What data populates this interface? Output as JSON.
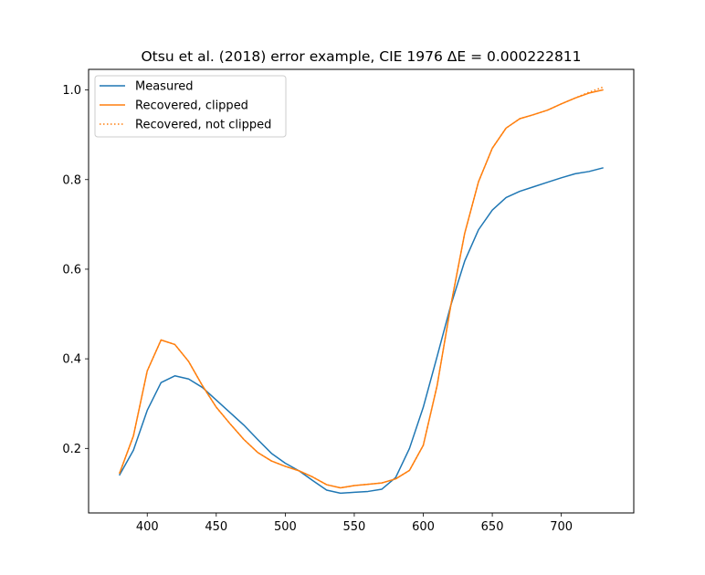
{
  "chart_data": {
    "type": "line",
    "title": "Otsu et al. (2018) error example, CIE 1976 ΔE = 0.000222811",
    "xlabel": "",
    "ylabel": "",
    "xlim": [
      357.5,
      752.5
    ],
    "ylim": [
      0.056,
      1.046
    ],
    "xticks": [
      400,
      450,
      500,
      550,
      600,
      650,
      700
    ],
    "yticks": [
      0.2,
      0.4,
      0.6,
      0.8,
      1.0
    ],
    "xtick_labels": [
      "400",
      "450",
      "500",
      "550",
      "600",
      "650",
      "700"
    ],
    "ytick_labels": [
      "0.2",
      "0.4",
      "0.6",
      "0.8",
      "1.0"
    ],
    "grid": false,
    "legend_position": "top-left",
    "x": [
      380,
      390,
      400,
      410,
      420,
      430,
      440,
      450,
      460,
      470,
      480,
      490,
      500,
      510,
      520,
      530,
      540,
      550,
      560,
      570,
      580,
      590,
      600,
      610,
      620,
      630,
      640,
      650,
      660,
      670,
      680,
      690,
      700,
      710,
      720,
      730
    ],
    "series": [
      {
        "name": "Measured",
        "color": "#1f77b4",
        "style": "solid",
        "values": [
          0.141,
          0.196,
          0.285,
          0.347,
          0.362,
          0.355,
          0.336,
          0.308,
          0.28,
          0.252,
          0.22,
          0.189,
          0.167,
          0.15,
          0.128,
          0.107,
          0.1,
          0.102,
          0.104,
          0.109,
          0.135,
          0.2,
          0.292,
          0.405,
          0.52,
          0.618,
          0.688,
          0.732,
          0.76,
          0.774,
          0.784,
          0.794,
          0.804,
          0.813,
          0.818,
          0.826
        ]
      },
      {
        "name": "Recovered, clipped",
        "color": "#ff7f0e",
        "style": "solid",
        "values": [
          0.145,
          0.228,
          0.373,
          0.442,
          0.432,
          0.394,
          0.34,
          0.292,
          0.255,
          0.22,
          0.191,
          0.172,
          0.16,
          0.15,
          0.136,
          0.119,
          0.112,
          0.117,
          0.12,
          0.123,
          0.132,
          0.151,
          0.207,
          0.34,
          0.52,
          0.68,
          0.795,
          0.87,
          0.915,
          0.936,
          0.945,
          0.955,
          0.969,
          0.982,
          0.993,
          1.0
        ]
      },
      {
        "name": "Recovered, not clipped",
        "color": "#ff7f0e",
        "style": "dotted",
        "values": [
          0.145,
          0.228,
          0.373,
          0.442,
          0.432,
          0.394,
          0.34,
          0.292,
          0.255,
          0.22,
          0.191,
          0.172,
          0.16,
          0.15,
          0.136,
          0.119,
          0.112,
          0.117,
          0.12,
          0.123,
          0.132,
          0.151,
          0.207,
          0.34,
          0.52,
          0.68,
          0.795,
          0.87,
          0.915,
          0.936,
          0.945,
          0.955,
          0.969,
          0.982,
          0.995,
          1.006
        ]
      }
    ]
  }
}
